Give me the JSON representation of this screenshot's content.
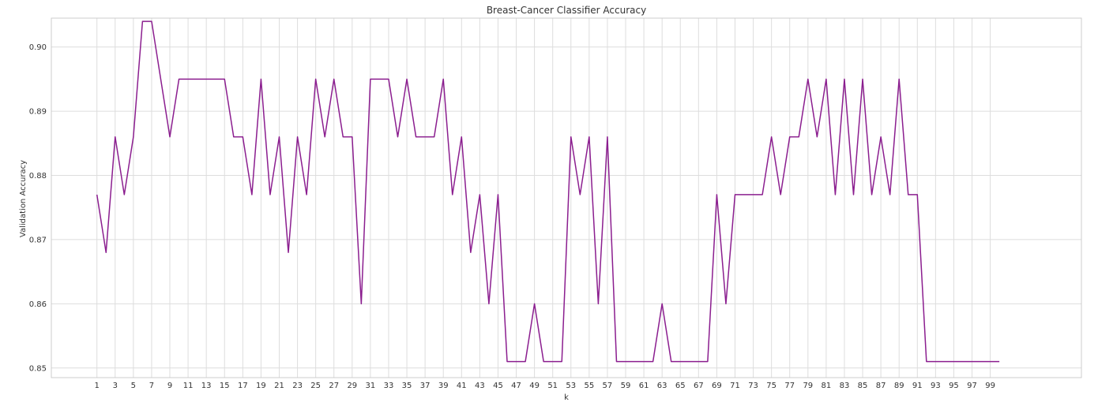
{
  "colors": {
    "line": "#8b1e8f",
    "grid": "#dddddd",
    "frame": "#cccccc",
    "text": "#333333",
    "background": "#ffffff"
  },
  "chart_data": {
    "type": "line",
    "title": "Breast-Cancer Classifier Accuracy",
    "xlabel": "k",
    "ylabel": "Validation Accuracy",
    "grid": true,
    "legend": "none",
    "xlim": [
      -4,
      109
    ],
    "ylim": [
      0.8485,
      0.9045
    ],
    "xticks": [
      1,
      3,
      5,
      7,
      9,
      11,
      13,
      15,
      17,
      19,
      21,
      23,
      25,
      27,
      29,
      31,
      33,
      35,
      37,
      39,
      41,
      43,
      45,
      47,
      49,
      51,
      53,
      55,
      57,
      59,
      61,
      63,
      65,
      67,
      69,
      71,
      73,
      75,
      77,
      79,
      81,
      83,
      85,
      87,
      89,
      91,
      93,
      95,
      97,
      99
    ],
    "yticks": [
      0.85,
      0.86,
      0.87,
      0.88,
      0.89,
      0.9
    ],
    "ytick_labels": [
      "0.85",
      "0.86",
      "0.87",
      "0.88",
      "0.89",
      "0.90"
    ],
    "x": [
      1,
      2,
      3,
      4,
      5,
      6,
      7,
      8,
      9,
      10,
      11,
      12,
      13,
      14,
      15,
      16,
      17,
      18,
      19,
      20,
      21,
      22,
      23,
      24,
      25,
      26,
      27,
      28,
      29,
      30,
      31,
      32,
      33,
      34,
      35,
      36,
      37,
      38,
      39,
      40,
      41,
      42,
      43,
      44,
      45,
      46,
      47,
      48,
      49,
      50,
      51,
      52,
      53,
      54,
      55,
      56,
      57,
      58,
      59,
      60,
      61,
      62,
      63,
      64,
      65,
      66,
      67,
      68,
      69,
      70,
      71,
      72,
      73,
      74,
      75,
      76,
      77,
      78,
      79,
      80,
      81,
      82,
      83,
      84,
      85,
      86,
      87,
      88,
      89,
      90,
      91,
      92,
      93,
      94,
      95,
      96,
      97,
      98,
      99,
      100
    ],
    "series": [
      {
        "values": [
          0.877,
          0.868,
          0.886,
          0.877,
          0.886,
          0.904,
          0.904,
          0.895,
          0.886,
          0.895,
          0.895,
          0.895,
          0.895,
          0.895,
          0.895,
          0.886,
          0.886,
          0.877,
          0.895,
          0.877,
          0.886,
          0.868,
          0.886,
          0.877,
          0.895,
          0.886,
          0.895,
          0.886,
          0.886,
          0.86,
          0.895,
          0.895,
          0.895,
          0.886,
          0.895,
          0.886,
          0.886,
          0.886,
          0.895,
          0.877,
          0.886,
          0.868,
          0.877,
          0.86,
          0.877,
          0.851,
          0.851,
          0.851,
          0.86,
          0.851,
          0.851,
          0.851,
          0.886,
          0.877,
          0.886,
          0.86,
          0.886,
          0.851,
          0.851,
          0.851,
          0.851,
          0.851,
          0.86,
          0.851,
          0.851,
          0.851,
          0.851,
          0.851,
          0.877,
          0.86,
          0.877,
          0.877,
          0.877,
          0.877,
          0.886,
          0.877,
          0.886,
          0.886,
          0.895,
          0.886,
          0.895,
          0.877,
          0.895,
          0.877,
          0.895,
          0.877,
          0.886,
          0.877,
          0.895,
          0.877,
          0.877,
          0.851,
          0.851,
          0.851,
          0.851,
          0.851,
          0.851,
          0.851,
          0.851,
          0.851
        ]
      }
    ]
  }
}
